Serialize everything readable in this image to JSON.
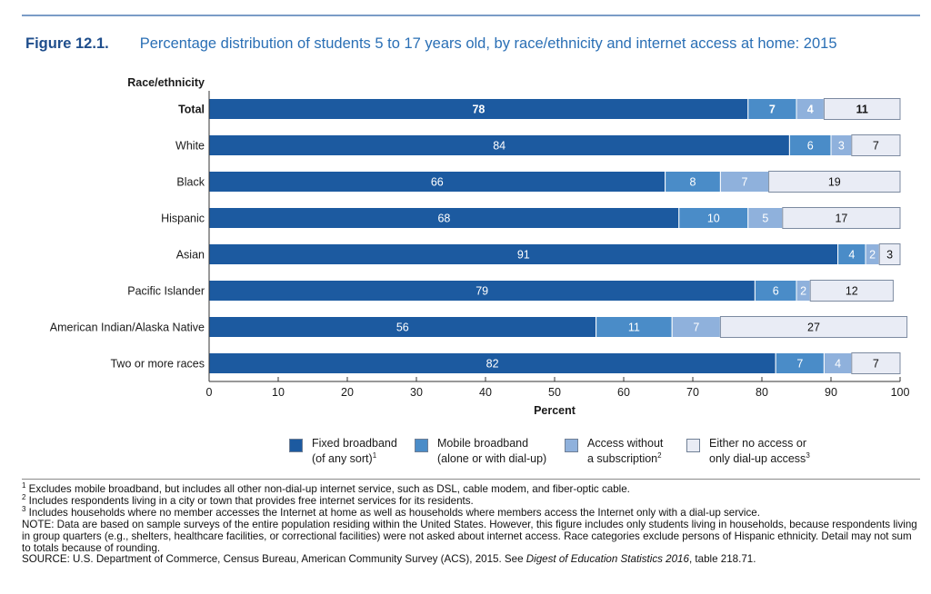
{
  "figure": {
    "number": "Figure 12.1.",
    "title": "Percentage distribution of students 5 to 17 years old, by race/ethnicity and internet access at home: 2015"
  },
  "chart_data": {
    "type": "bar",
    "orientation": "horizontal",
    "stacked": true,
    "category_axis_title": "Race/ethnicity",
    "xlabel": "Percent",
    "xlim": [
      0,
      100
    ],
    "xticks": [
      0,
      10,
      20,
      30,
      40,
      50,
      60,
      70,
      80,
      90,
      100
    ],
    "grid": false,
    "legend_position": "bottom",
    "categories": [
      "Total",
      "White",
      "Black",
      "Hispanic",
      "Asian",
      "Pacific Islander",
      "American Indian/Alaska Native",
      "Two or more races"
    ],
    "series": [
      {
        "name": "Fixed broadband (of any sort)",
        "color": "#1c5aa0",
        "values": [
          78,
          84,
          66,
          68,
          91,
          79,
          56,
          82
        ]
      },
      {
        "name": "Mobile broadband (alone or with dial-up)",
        "color": "#4a8cc8",
        "values": [
          7,
          6,
          8,
          10,
          4,
          6,
          11,
          7
        ]
      },
      {
        "name": "Access without a subscription",
        "color": "#8fb1dc",
        "values": [
          4,
          3,
          7,
          5,
          2,
          2,
          7,
          4
        ]
      },
      {
        "name": "Either no access or only dial-up access",
        "color": "#e9ecf5",
        "values": [
          11,
          7,
          19,
          17,
          3,
          12,
          27,
          7
        ]
      }
    ]
  },
  "legend": [
    {
      "line1": "Fixed broadband",
      "line2": "(of any sort)",
      "sup": "1"
    },
    {
      "line1": "Mobile broadband",
      "line2": "(alone or with dial-up)",
      "sup": ""
    },
    {
      "line1": "Access without",
      "line2": "a subscription",
      "sup": "2"
    },
    {
      "line1": "Either no access or",
      "line2": "only dial-up access",
      "sup": "3"
    }
  ],
  "notes": {
    "fn1_mark": "1",
    "fn1": " Excludes mobile broadband, but includes all other non-dial-up internet service, such as DSL, cable modem, and fiber-optic cable.",
    "fn2_mark": "2",
    "fn2": " Includes respondents living in a city or town that provides free internet services for its residents.",
    "fn3_mark": "3",
    "fn3": " Includes households where no member accesses the Internet at home as well as households where members access the Internet only with a dial-up service.",
    "note": "NOTE: Data are based on sample surveys of the entire population residing within the United States. However, this figure includes only students living in households, because respondents living in group quarters (e.g., shelters, healthcare facilities, or correctional facilities) were not asked about internet access. Race categories exclude persons of Hispanic ethnicity. Detail may not sum to totals because of rounding.",
    "source_pre": "SOURCE: U.S. Department of Commerce, Census Bureau, American Community Survey (ACS), 2015. See ",
    "source_italic": "Digest of Education Statistics 2016",
    "source_post": ", table 218.71."
  }
}
